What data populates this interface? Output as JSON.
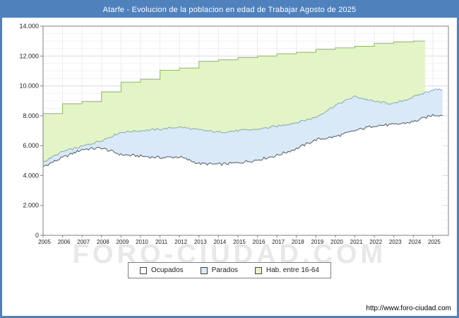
{
  "title": "Atarfe - Evolucion de la poblacion en edad de Trabajar Agosto de 2025",
  "watermark": "FORO-CIUDAD.COM",
  "footer": {
    "link": "http://www.foro-ciudad.com"
  },
  "legend": {
    "items": [
      {
        "label": "Ocupados"
      },
      {
        "label": "Parados"
      },
      {
        "label": "Hab. entre 16-64"
      }
    ]
  },
  "chart_data": {
    "type": "area",
    "title": "Atarfe - Evolucion de la poblacion en edad de Trabajar Agosto de 2025",
    "x_years": [
      2005,
      2006,
      2007,
      2008,
      2009,
      2010,
      2011,
      2012,
      2013,
      2014,
      2015,
      2016,
      2017,
      2018,
      2019,
      2020,
      2021,
      2022,
      2023,
      2024,
      2025
    ],
    "x_tick_labels": [
      "2005",
      "2006",
      "2007",
      "2008",
      "2009",
      "2010",
      "2011",
      "2012",
      "2013",
      "2014",
      "2015",
      "2016",
      "2017",
      "2018",
      "2019",
      "2020",
      "2021",
      "2022",
      "2023",
      "2024",
      "2025"
    ],
    "ylim": [
      0,
      14000
    ],
    "y_tick_step": 2000,
    "y_tick_labels": [
      "0",
      "2.000",
      "4.000",
      "6.000",
      "8.000",
      "10.000",
      "12.000",
      "14.000"
    ],
    "grid": true,
    "legend_position": "bottom",
    "legend_labels": [
      "Ocupados",
      "Parados",
      "Hab. entre 16-64"
    ],
    "legend_colors": [
      "#ffffff",
      "#d9e9f7",
      "#e3f4c6"
    ],
    "series": [
      {
        "name": "Hab. entre 16-64",
        "style": "step",
        "fill": "#e3f4c6",
        "stroke": "#8bbd4f",
        "end_x": 2024.6,
        "values": [
          8150,
          8800,
          8950,
          9600,
          10250,
          10450,
          11050,
          11200,
          11650,
          11750,
          11900,
          12000,
          12150,
          12250,
          12450,
          12550,
          12650,
          12850,
          12950,
          13000
        ]
      },
      {
        "name": "Parados",
        "style": "line",
        "fill": "#d9e9f7",
        "stroke": "#7fa8cf",
        "end_x": 2025.58,
        "values": [
          4900,
          5600,
          5950,
          6350,
          6900,
          7000,
          7100,
          7250,
          7050,
          6900,
          7000,
          7100,
          7300,
          7550,
          7900,
          8700,
          9300,
          8950,
          8800,
          9250,
          9750
        ]
      },
      {
        "name": "Ocupados",
        "style": "line",
        "fill": "#ffffff",
        "stroke": "#595959",
        "end_x": 2025.58,
        "values": [
          4600,
          5200,
          5750,
          5850,
          5400,
          5300,
          5200,
          5250,
          4800,
          4750,
          4850,
          5050,
          5350,
          5800,
          6400,
          6600,
          7000,
          7350,
          7400,
          7600,
          8050
        ]
      }
    ]
  }
}
